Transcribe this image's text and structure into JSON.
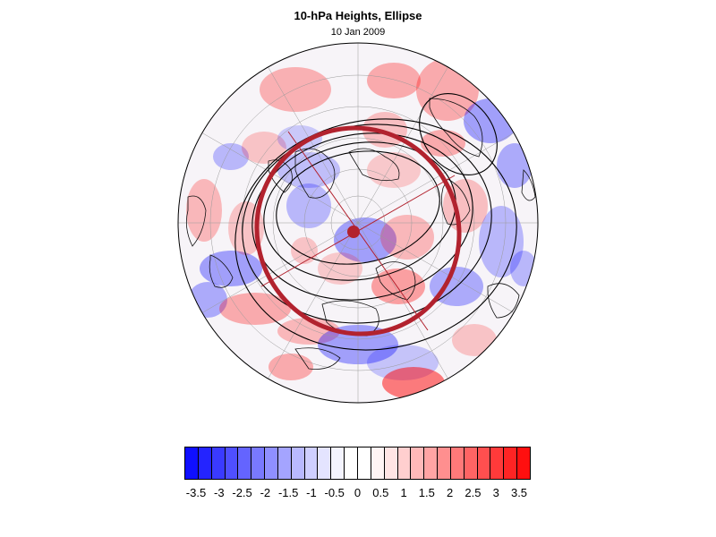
{
  "title": "10-hPa Heights, Ellipse",
  "subtitle": "10 Jan 2009",
  "colorbar": {
    "labels": [
      "-3.5",
      "-3",
      "-2.5",
      "-2",
      "-1.5",
      "-1",
      "-0.5",
      "0",
      "0.5",
      "1",
      "1.5",
      "2",
      "2.5",
      "3",
      "3.5"
    ],
    "colors": [
      "#0f0fff",
      "#2424ff",
      "#3a3aff",
      "#4f4fff",
      "#6464ff",
      "#7979ff",
      "#8f8fff",
      "#a4a4ff",
      "#b9b9ff",
      "#cfcfff",
      "#e4e4ff",
      "#f4f4ff",
      "#ffffff",
      "#ffffff",
      "#fff4f4",
      "#ffe4e4",
      "#ffcfcf",
      "#ffb9b9",
      "#ffa4a4",
      "#ff8f8f",
      "#ff7979",
      "#ff6464",
      "#ff4f4f",
      "#ff3a3a",
      "#ff2424",
      "#ff0f0f"
    ]
  },
  "map": {
    "projection": "north polar stereographic",
    "positive_color": "#ff0000",
    "negative_color": "#0000ff",
    "height_contour_color": "#000000",
    "ellipse_color": "#b2222e"
  }
}
